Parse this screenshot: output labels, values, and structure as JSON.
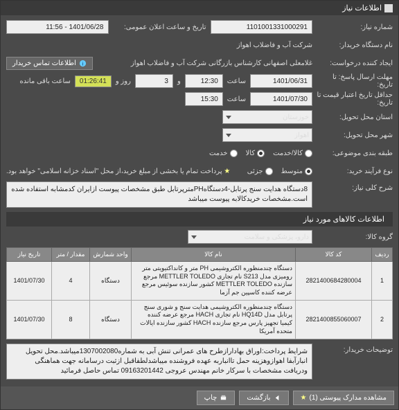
{
  "titleBar": "اطلاعات نیاز",
  "fields": {
    "reqNumLabel": "شماره نیاز:",
    "reqNum": "1101001331000291",
    "announceDateLabel": "تاریخ و ساعت اعلان عمومی:",
    "announceDate": "1401/06/28 - 11:56",
    "buyerOrgLabel": "نام دستگاه خریدار:",
    "buyerOrg": "شرکت آب و فاضلاب اهواز",
    "creatorLabel": "ایجاد کننده درخواست:",
    "creator": "غلامعلی اصفهانی کارشناس بازرگانی شرکت آب و فاضلاب اهواز",
    "contactBtn": "اطلاعات تماس خریدار",
    "deadlineLabel": "مهلت ارسال پاسخ: تا تاریخ:",
    "deadlineDate": "1401/06/31",
    "timeLabel": "ساعت",
    "deadlineTime": "12:30",
    "andLabel": "و",
    "daysVal": "3",
    "daysAndLabel": "روز و",
    "timer": "01:26:41",
    "remainLabel": "ساعت باقی مانده",
    "validLabel": "حداقل تاریخ اعتبار قیمت تا تاریخ:",
    "validDate": "1401/07/30",
    "validTime": "15:30",
    "provinceLabel": "استان محل تحویل:",
    "province": "خوزستان",
    "cityLabel": "شهر محل تحویل:",
    "city": "اهواز",
    "classLabel": "طبقه بندی موضوعی:",
    "opt1": "کالا/خدمت",
    "opt2": "کالا",
    "opt3": "خدمت",
    "procLabel": "نوع فرآیند خرید:",
    "proc1": "متوسط",
    "proc2": "جزئی",
    "payNote": "پرداخت تمام یا بخشی از مبلغ خرید،از محل \"اسناد خزانه اسلامی\" خواهد بود.",
    "descLabel": "شرح کلی نیاز:",
    "desc": "8دستگاه هدایت سنج پرتابل-4دستگاهPHمترپرتابل طبق مشخصات پیوست ازایران کدمشابه استفاده شده است.مشخصات خریدکالابه پیوست میباشد",
    "itemsHeader": "اطلاعات کالاهای مورد نیاز",
    "groupLabel": "گروه کالا:",
    "group": "دارو، پزشکی و سلامت",
    "buyerDescLabel": "توضیحات خریدار:",
    "buyerDesc": "شرایط پرداخت:اوراق بهادارازطرح های عمرانی تنش آبی به شماره1307002080میباشد.محل تحویل انبارآبفا اهوازوهزینه حمل تاانباربه عهده فروشنده میباشدلطفاقبل ازثبت درسامانه جهت هماهنگی ودریافت مشخصات با سرکار خانم مهندس عروجی 09163201442 تماس حاصل فرمائید"
  },
  "table": {
    "headers": [
      "ردیف",
      "کد کالا",
      "نام کالا",
      "واحد شمارش",
      "مقدار / متر",
      "تاریخ نیاز"
    ],
    "rows": [
      {
        "n": "1",
        "code": "2821400684280004",
        "name": "دستگاه چندمنظوره الکتروشیمی PH متر و کانداکتیویتی متر رومیزی مدل S213 نام تجاری METTLER TOLEDO مرجع سازنده METTLER TOLEDO کشور سازنده سوئیس مرجع عرضه کننده کاسپین جم آزما",
        "unit": "دستگاه",
        "qty": "4",
        "date": "1401/07/30"
      },
      {
        "n": "2",
        "code": "2821400855060007",
        "name": "دستگاه چندمنظوره الکتروشیمی هدایت سنج و شوری سنج پرتابل مدل HQ14D نام تجاری HACH مرجع عرضه کننده کیمیا تجهیز پارس مرجع سازنده HACH کشور سازنده ایالات متحده آمریکا",
        "unit": "دستگاه",
        "qty": "8",
        "date": "1401/07/30"
      }
    ]
  },
  "buttons": {
    "attach": "مشاهده مدارک پیوستی (1)",
    "back": "بازگشت",
    "print": "چاپ"
  }
}
